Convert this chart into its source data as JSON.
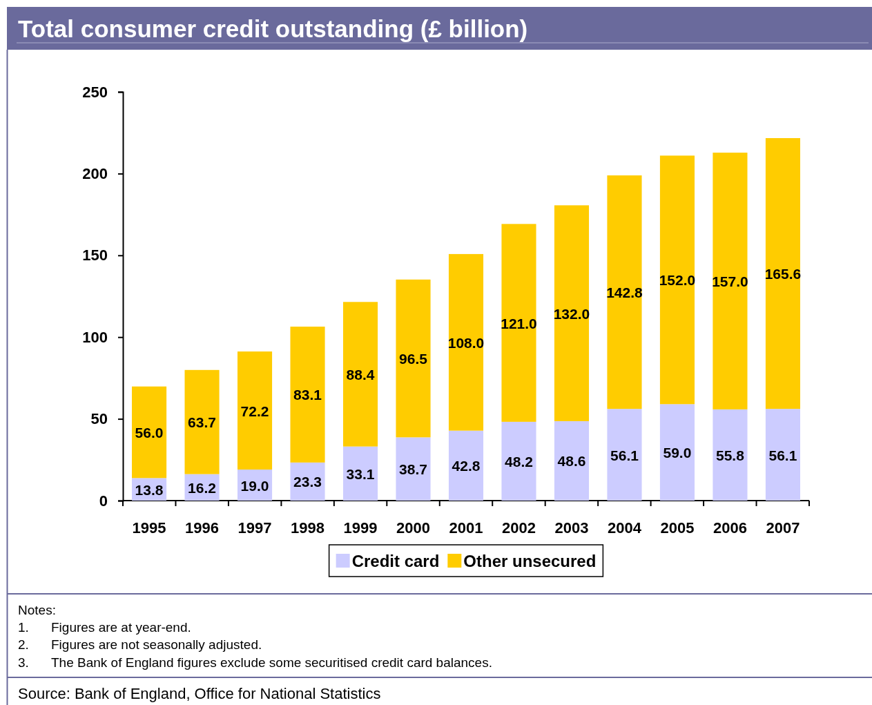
{
  "chart_data": {
    "type": "bar",
    "title": "Total consumer credit outstanding (£ billion)",
    "categories": [
      "1995",
      "1996",
      "1997",
      "1998",
      "1999",
      "2000",
      "2001",
      "2002",
      "2003",
      "2004",
      "2005",
      "2006",
      "2007"
    ],
    "stacked": true,
    "series": [
      {
        "name": "Credit card",
        "color": "#ccccff",
        "values": [
          13.8,
          16.2,
          19.0,
          23.3,
          33.1,
          38.7,
          42.8,
          48.2,
          48.6,
          56.1,
          59.0,
          55.8,
          56.1
        ],
        "value_labels": [
          "13.8",
          "16.2",
          "19.0",
          "23.3",
          "33.1",
          "38.7",
          "42.8",
          "48.2",
          "48.6",
          "56.1",
          "59.0",
          "55.8",
          "56.1"
        ]
      },
      {
        "name": "Other unsecured",
        "color": "#ffcc00",
        "values": [
          56.0,
          63.7,
          72.2,
          83.1,
          88.4,
          96.5,
          108.0,
          121.0,
          132.0,
          142.8,
          152.0,
          157.0,
          165.6
        ],
        "value_labels": [
          "56.0",
          "63.7",
          "72.2",
          "83.1",
          "88.4",
          "96.5",
          "108.0",
          "121.0",
          "132.0",
          "142.8",
          "152.0",
          "157.0",
          "165.6"
        ]
      }
    ],
    "ylim": [
      0,
      250
    ],
    "yticks": [
      0,
      50,
      100,
      150,
      200,
      250
    ],
    "grid": false,
    "legend": "bottom",
    "annotations": [
      "Notes:",
      "1.\tFigures are at year-end.",
      "2.\tFigures are not seasonally adjusted.",
      "3.\tThe Bank of England figures exclude some securitised credit card balances.",
      "Source:  Bank of England, Office for National Statistics"
    ]
  }
}
